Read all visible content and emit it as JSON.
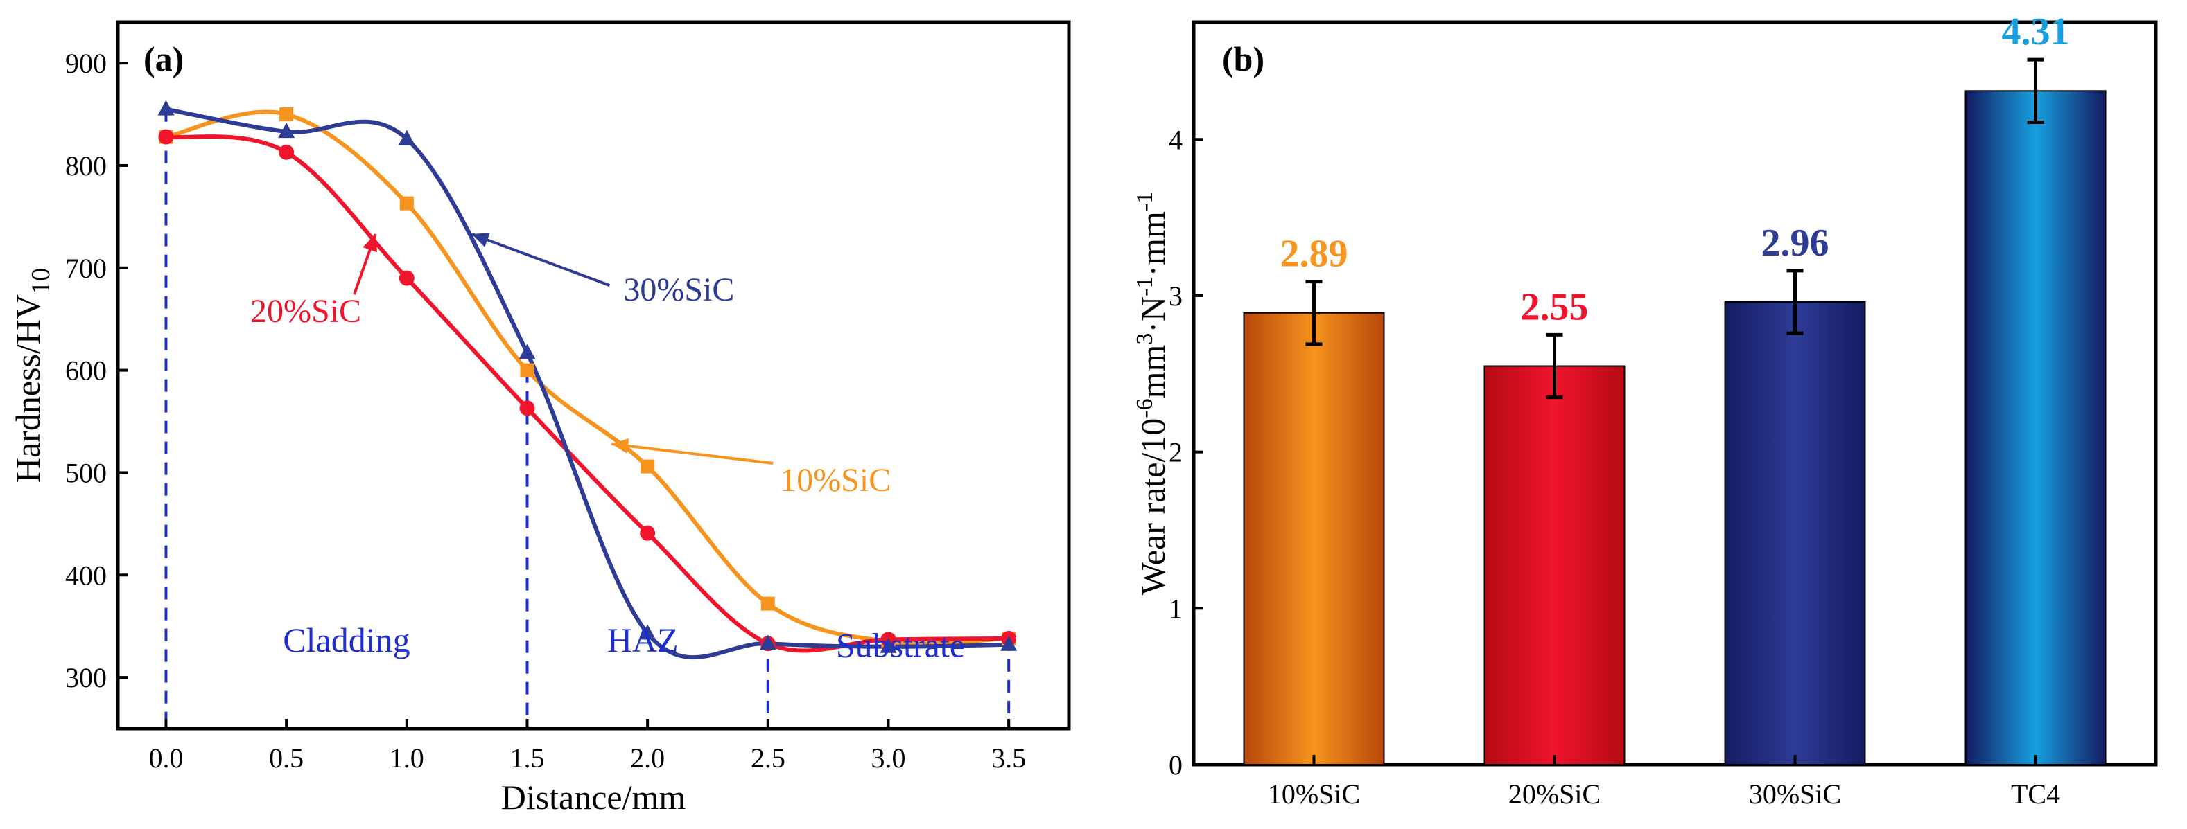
{
  "chart_data": [
    {
      "type": "line",
      "panel_label": "(a)",
      "title": "",
      "xlabel": "Distance/mm",
      "ylabel": "Hardness/HV",
      "ylabel_subscript": "10",
      "xlim": [
        -0.2,
        3.75
      ],
      "ylim": [
        250,
        940
      ],
      "xticks": [
        0.0,
        0.5,
        1.0,
        1.5,
        2.0,
        2.5,
        3.0,
        3.5
      ],
      "xtick_labels": [
        "0.0",
        "0.5",
        "1.0",
        "1.5",
        "2.0",
        "2.5",
        "3.0",
        "3.5"
      ],
      "yticks": [
        300,
        400,
        500,
        600,
        700,
        800,
        900
      ],
      "ytick_labels": [
        "300",
        "400",
        "500",
        "600",
        "700",
        "800",
        "900"
      ],
      "x": [
        0.0,
        0.5,
        1.0,
        1.5,
        2.0,
        2.5,
        3.0,
        3.5
      ],
      "series": [
        {
          "name": "10%SiC",
          "label": "10%SiC",
          "color": "#F7941D",
          "marker": "square",
          "values": [
            828,
            850,
            763,
            600,
            506,
            372,
            335,
            338
          ],
          "annotation_arrow_to": [
            1.85,
            528
          ],
          "annotation_text_at": [
            2.55,
            482
          ]
        },
        {
          "name": "20%SiC",
          "label": "20%SiC",
          "color": "#F0142C",
          "marker": "circle",
          "values": [
            828,
            813,
            690,
            563,
            441,
            333,
            337,
            338
          ],
          "annotation_arrow_to": [
            0.87,
            733
          ],
          "annotation_text_at": [
            0.35,
            647
          ]
        },
        {
          "name": "30%SiC",
          "label": "30%SiC",
          "color": "#2E3C96",
          "marker": "triangle",
          "values": [
            855,
            833,
            826,
            617,
            343,
            333,
            330,
            332
          ],
          "annotation_arrow_to": [
            1.27,
            733
          ],
          "annotation_text_at": [
            1.9,
            668
          ]
        }
      ],
      "boundaries": [
        0.0,
        1.5,
        2.5,
        3.5
      ],
      "regions": [
        {
          "label": "Cladding",
          "x": 0.75,
          "y": 325
        },
        {
          "label": "HAZ",
          "x": 1.98,
          "y": 325
        },
        {
          "label": "Substrate",
          "x": 3.05,
          "y": 320
        }
      ]
    },
    {
      "type": "bar",
      "panel_label": "(b)",
      "title": "",
      "xlabel": "",
      "ylabel": "Wear rate/10^-6 mm^3·N^-1·mm^-1",
      "ylim": [
        0,
        4.75
      ],
      "yticks": [
        0,
        1,
        2,
        3,
        4
      ],
      "ytick_labels": [
        "0",
        "1",
        "2",
        "3",
        "4"
      ],
      "categories": [
        "10%SiC",
        "20%SiC",
        "30%SiC",
        "TC4"
      ],
      "values": [
        2.89,
        2.55,
        2.96,
        4.31
      ],
      "errors": [
        0.2,
        0.2,
        0.2,
        0.2
      ],
      "value_labels": [
        "2.89",
        "2.55",
        "2.96",
        "4.31"
      ],
      "colors": [
        "#F7941D",
        "#F0142C",
        "#2E3C96",
        "#16A0E0"
      ],
      "dark_colors": [
        "#B8470A",
        "#B50A14",
        "#141B60",
        "#141B60"
      ]
    }
  ]
}
